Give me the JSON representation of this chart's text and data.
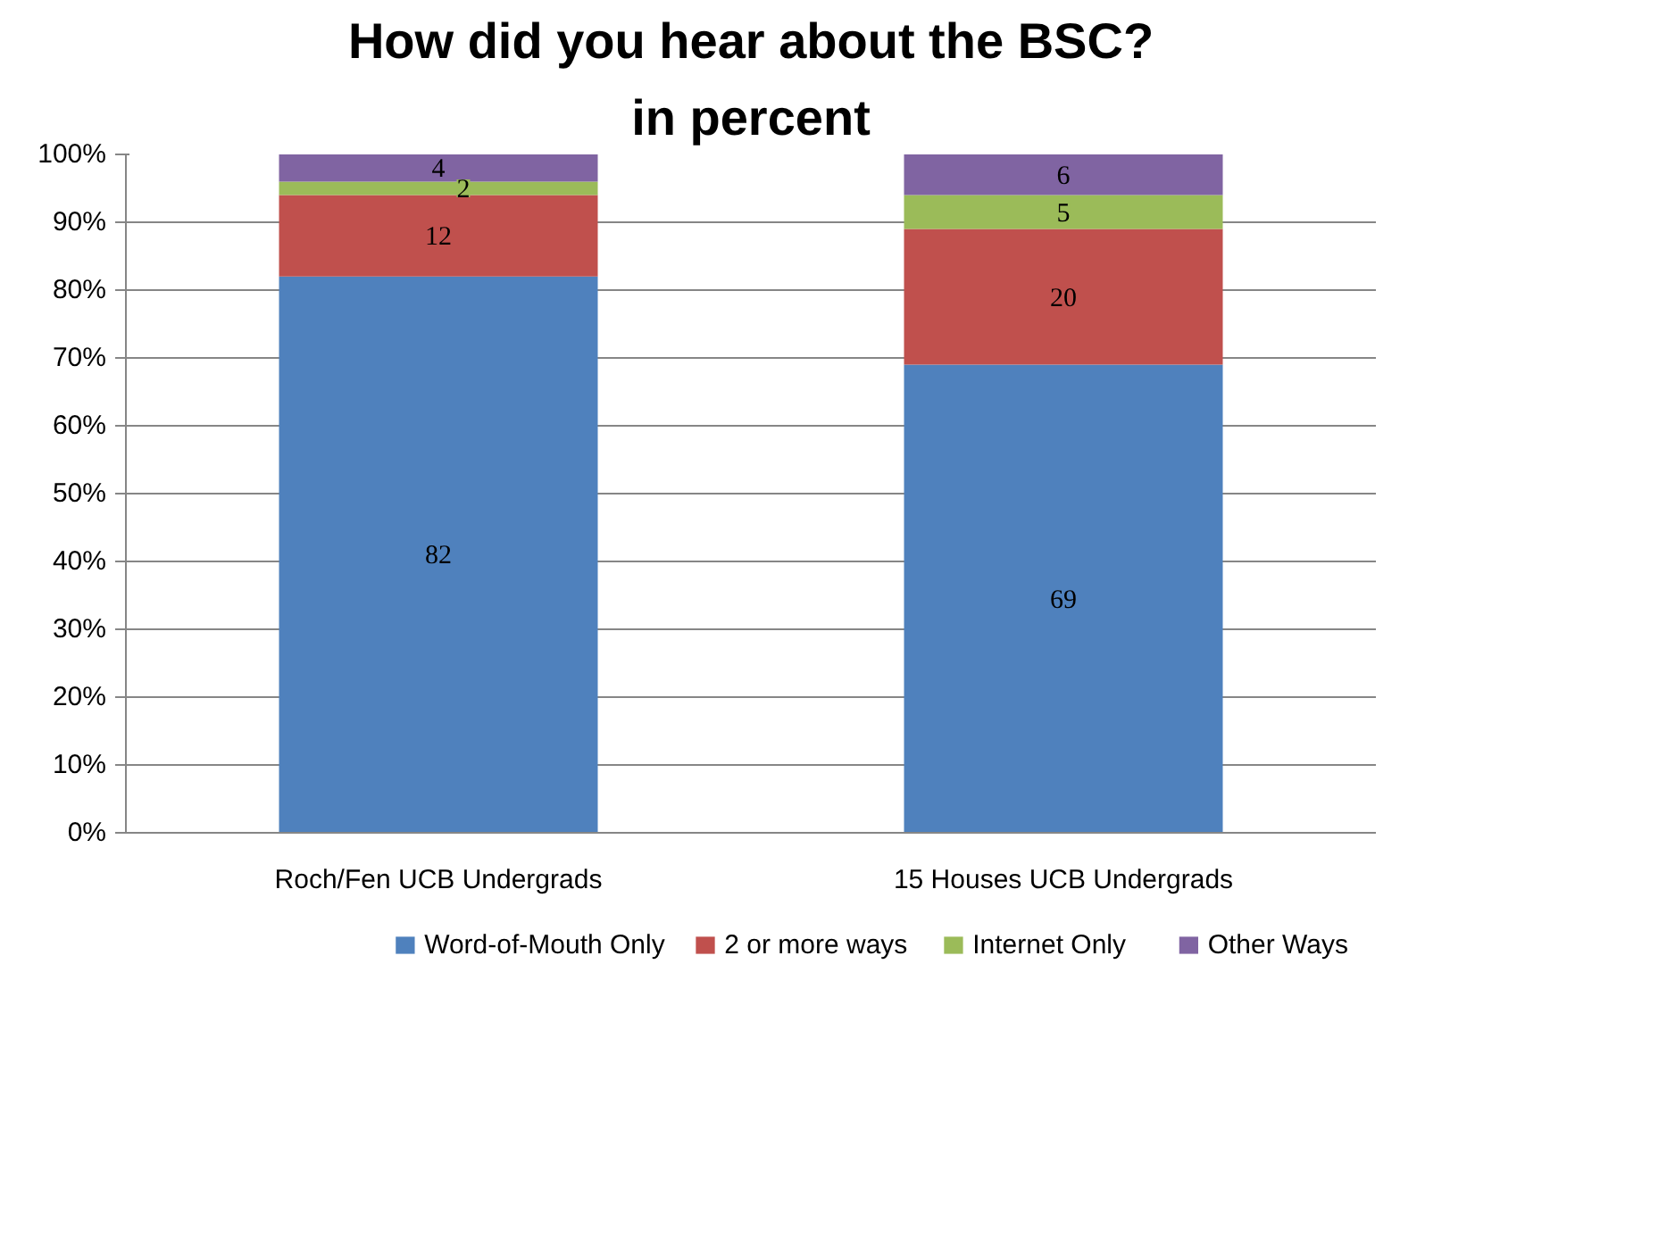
{
  "chart_data": {
    "type": "bar",
    "title": "How did you hear about the BSC?",
    "subtitle": "in percent",
    "categories": [
      "Roch/Fen UCB Undergrads",
      "15 Houses UCB Undergrads"
    ],
    "stacked": true,
    "series": [
      {
        "name": "Word-of-Mouth Only",
        "color": "#4f81bd",
        "values": [
          82,
          69
        ]
      },
      {
        "name": "2 or more ways",
        "color": "#c0504d",
        "values": [
          12,
          20
        ]
      },
      {
        "name": "Internet Only",
        "color": "#9bbb59",
        "values": [
          2,
          5
        ]
      },
      {
        "name": "Other Ways",
        "color": "#8064a2",
        "values": [
          4,
          6
        ]
      }
    ],
    "ylim": [
      0,
      100
    ],
    "yticks": [
      {
        "value": 0,
        "label": "0%"
      },
      {
        "value": 10,
        "label": "10%"
      },
      {
        "value": 20,
        "label": "20%"
      },
      {
        "value": 30,
        "label": "30%"
      },
      {
        "value": 40,
        "label": "40%"
      },
      {
        "value": 50,
        "label": "50%"
      },
      {
        "value": 60,
        "label": "60%"
      },
      {
        "value": 70,
        "label": "70%"
      },
      {
        "value": 80,
        "label": "80%"
      },
      {
        "value": 90,
        "label": "90%"
      },
      {
        "value": 100,
        "label": "100%"
      }
    ],
    "grid": "y",
    "legend": "bottom",
    "data_labels": true
  }
}
